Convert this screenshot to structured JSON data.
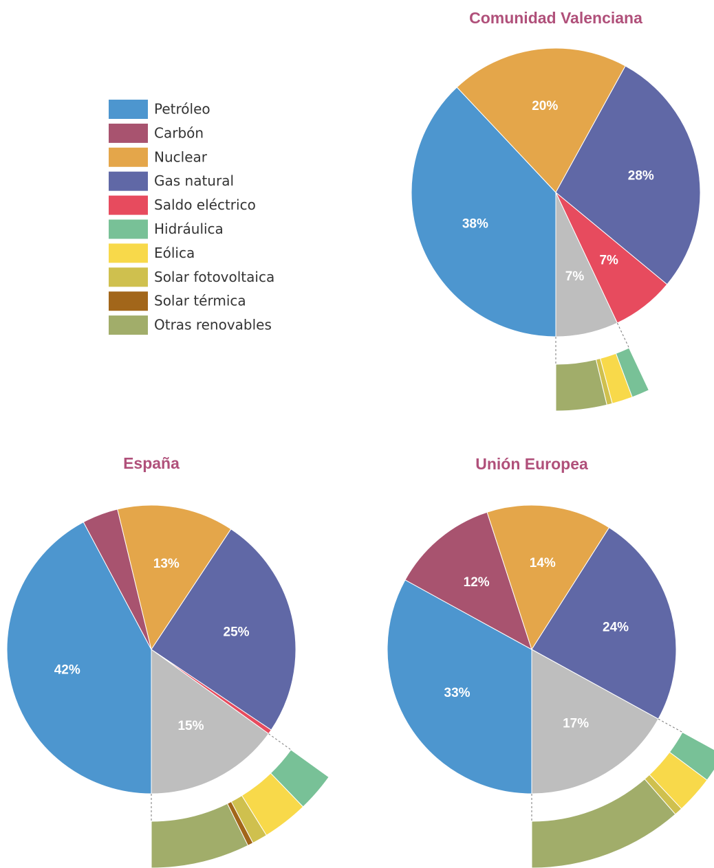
{
  "legend": {
    "labels": [
      "Petróleo",
      "Carbón",
      "Nuclear",
      "Gas natural",
      "Saldo eléctrico",
      "Hidráulica",
      "Eólica",
      "Solar fotovoltaica",
      "Solar térmica",
      "Otras renovables"
    ],
    "colors": [
      "#4d96cf",
      "#a8536f",
      "#e4a64a",
      "#6068a6",
      "#e74b5e",
      "#78c197",
      "#f8d94a",
      "#cfc04e",
      "#a2661a",
      "#a1ad6a"
    ]
  },
  "renewables_color": "#bebebe",
  "chart_data": [
    {
      "type": "pie",
      "title": "Comunidad Valenciana",
      "values": [
        38,
        0,
        20,
        28,
        7,
        7
      ],
      "value_labels": [
        "38%",
        null,
        "20%",
        "28%",
        "7%",
        "7%"
      ],
      "breakdown": [
        1.3,
        1.5,
        0.4,
        0,
        3.7
      ]
    },
    {
      "type": "pie",
      "title": "España",
      "values": [
        42,
        4,
        13,
        25,
        0.5,
        15
      ],
      "value_labels": [
        "42%",
        null,
        "13%",
        "25%",
        null,
        "15%"
      ],
      "breakdown": [
        2.8,
        3.3,
        1.1,
        0.4,
        7.1
      ]
    },
    {
      "type": "pie",
      "title": "Unión Europea",
      "values": [
        33,
        12,
        14,
        24,
        0,
        17
      ],
      "value_labels": [
        "33%",
        "12%",
        "14%",
        "24%",
        null,
        "17%"
      ],
      "breakdown": [
        2.2,
        2.8,
        0.6,
        0,
        11.4
      ]
    }
  ]
}
